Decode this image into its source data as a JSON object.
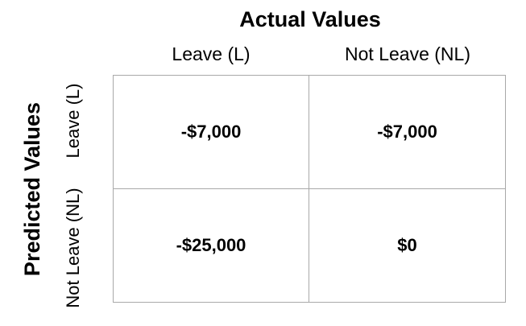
{
  "titles": {
    "actual": "Actual Values",
    "predicted": "Predicted Values"
  },
  "columns": [
    "Leave (L)",
    "Not Leave (NL)"
  ],
  "rows": [
    "Leave (L)",
    "Not Leave (NL)"
  ],
  "cells": [
    [
      "-$7,000",
      "-$7,000"
    ],
    [
      "-$25,000",
      "$0"
    ]
  ]
}
